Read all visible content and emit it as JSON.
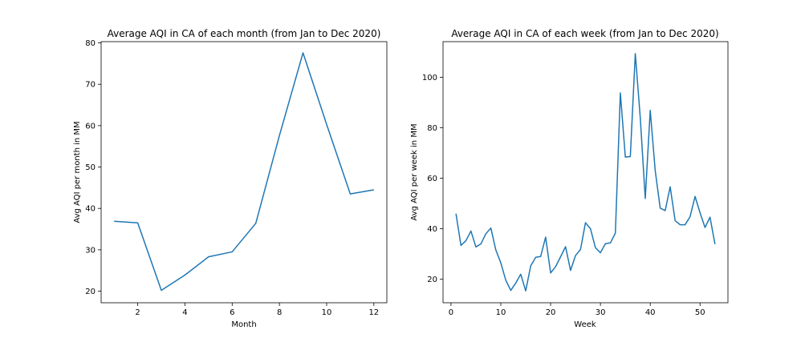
{
  "chart_data": [
    {
      "type": "line",
      "title": "Average AQI in CA of each month (from Jan to Dec 2020)",
      "xlabel": "Month",
      "ylabel": "Avg AQI per month in MM",
      "xlim": [
        0.45,
        12.55
      ],
      "ylim": [
        17.2,
        80.3
      ],
      "xticks": [
        2,
        4,
        6,
        8,
        10,
        12
      ],
      "yticks": [
        20,
        30,
        40,
        50,
        60,
        70,
        80
      ],
      "grid": false,
      "color": "#1f77b4",
      "series": [
        {
          "x": [
            1,
            2,
            3,
            4,
            5,
            6,
            7,
            8,
            9,
            10,
            11,
            12
          ],
          "values": [
            36.9,
            36.5,
            20.2,
            23.9,
            28.3,
            29.5,
            36.4,
            57.6,
            77.6,
            60.3,
            43.5,
            44.5
          ]
        }
      ]
    },
    {
      "type": "line",
      "title": "Average AQI in CA of each week (from Jan to Dec 2020)",
      "xlabel": "Week",
      "ylabel": "Avg AQI per week in MM",
      "xlim": [
        -1.6,
        55.6
      ],
      "ylim": [
        10.7,
        114.1
      ],
      "xticks": [
        0,
        10,
        20,
        30,
        40,
        50
      ],
      "yticks": [
        20,
        40,
        60,
        80,
        100
      ],
      "grid": false,
      "color": "#1f77b4",
      "series": [
        {
          "x": [
            1,
            2,
            3,
            4,
            5,
            6,
            7,
            8,
            9,
            10,
            11,
            12,
            13,
            14,
            15,
            16,
            17,
            18,
            19,
            20,
            21,
            22,
            23,
            24,
            25,
            26,
            27,
            28,
            29,
            30,
            31,
            32,
            33,
            34,
            35,
            36,
            37,
            38,
            39,
            40,
            41,
            42,
            43,
            44,
            45,
            46,
            47,
            48,
            49,
            50,
            51,
            52,
            53
          ],
          "values": [
            46.0,
            33.4,
            35.3,
            39.1,
            32.8,
            34.0,
            38.0,
            40.3,
            31.6,
            26.5,
            19.6,
            15.6,
            18.5,
            22.0,
            15.4,
            25.3,
            28.7,
            29.0,
            36.7,
            22.5,
            25.0,
            28.9,
            32.9,
            23.5,
            29.4,
            31.8,
            42.4,
            40.0,
            32.5,
            30.5,
            34.1,
            34.4,
            38.3,
            93.8,
            68.4,
            68.6,
            109.4,
            83.9,
            52.0,
            86.9,
            63.0,
            48.2,
            47.2,
            56.6,
            43.2,
            41.6,
            41.6,
            44.8,
            52.8,
            46.3,
            40.5,
            44.6,
            33.9
          ]
        }
      ]
    }
  ]
}
